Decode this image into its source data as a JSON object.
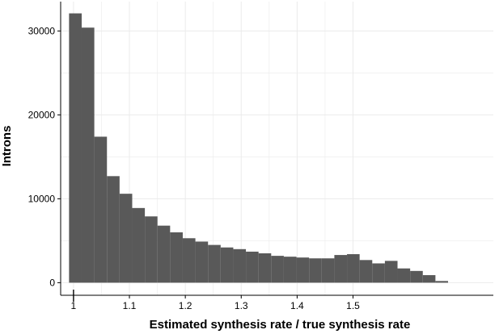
{
  "chart_data": {
    "type": "bar",
    "title": "",
    "xlabel": "Estimated synthesis rate / true synthesis rate",
    "ylabel": "Introns",
    "xlim": [
      0.977,
      1.751
    ],
    "ylim": [
      -1500,
      33500
    ],
    "grid": true,
    "bin_start": 0.992,
    "bin_width": 0.0226,
    "values": [
      32100,
      30400,
      17400,
      12700,
      10600,
      8900,
      7900,
      6800,
      6000,
      5300,
      4900,
      4500,
      4200,
      4000,
      3700,
      3500,
      3200,
      3100,
      3000,
      2900,
      2900,
      3300,
      3400,
      2700,
      2300,
      2600,
      1700,
      1400,
      900,
      200
    ],
    "x_ticks": [
      {
        "value": 1.0,
        "label": "1"
      },
      {
        "value": 1.1,
        "label": "1.1"
      },
      {
        "value": 1.2,
        "label": "1.2"
      },
      {
        "value": 1.3,
        "label": "1.3"
      },
      {
        "value": 1.4,
        "label": "1.4"
      },
      {
        "value": 1.5,
        "label": "1.5"
      }
    ],
    "y_ticks": [
      {
        "value": 0,
        "label": "0"
      },
      {
        "value": 10000,
        "label": "10000"
      },
      {
        "value": 20000,
        "label": "20000"
      },
      {
        "value": 30000,
        "label": "30000"
      }
    ],
    "colors": {
      "bar": "#595959",
      "grid": "#ebebeb",
      "axis": "#000000"
    }
  }
}
